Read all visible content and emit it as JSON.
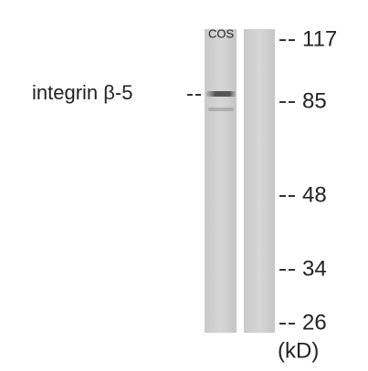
{
  "lane_labels": [
    "COS"
  ],
  "band_label": "integrin β-5",
  "markers": [
    "117",
    "85",
    "48",
    "34",
    "26"
  ],
  "unit": "(kD)"
}
